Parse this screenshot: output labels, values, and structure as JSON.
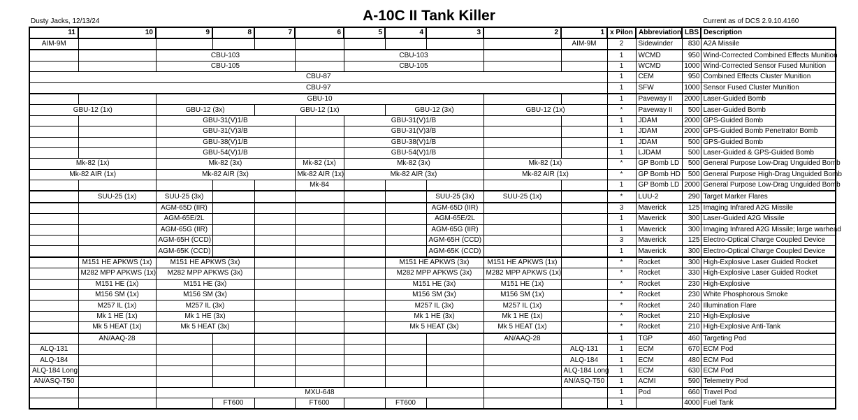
{
  "header": {
    "author": "Dusty Jacks, 12/13/24",
    "title": "A-10C II Tank Killer",
    "version": "Current as of DCS 2.9.10.4160"
  },
  "table": {
    "pylons": [
      11,
      10,
      9,
      8,
      7,
      6,
      5,
      4,
      3,
      2,
      1
    ],
    "columns": [
      "x Pilon",
      "Abbreviation",
      "LBS",
      "Description"
    ],
    "rows": [
      {
        "weapons": [
          "AIM-9M",
          "AIM-9M"
        ],
        "pilons": 2,
        "abbreviation": "Sidewinder",
        "lbs": 830,
        "description": "A2A Missile"
      },
      {
        "weapons": [
          "CBU-103",
          "CBU-103"
        ],
        "pilons": 1,
        "abbreviation": "WCMD",
        "lbs": 950,
        "description": "Wind-Corrected Combined Effects Munition"
      },
      {
        "weapons": [
          "CBU-105",
          "CBU-105"
        ],
        "pilons": 1,
        "abbreviation": "WCMD",
        "lbs": 1000,
        "description": "Wind-Corrected Sensor Fused Munition"
      },
      {
        "weapons": [
          "CBU-87"
        ],
        "pilons": 1,
        "abbreviation": "CEM",
        "lbs": 950,
        "description": "Combined Effects Cluster Munition"
      },
      {
        "weapons": [
          "CBU-97"
        ],
        "pilons": 1,
        "abbreviation": "SFW",
        "lbs": 1000,
        "description": "Sensor Fused Cluster Munition"
      },
      {
        "weapons": [
          "GBU-10"
        ],
        "pilons": 1,
        "abbreviation": "Paveway II",
        "lbs": 2000,
        "description": "Laser-Guided Bomb"
      },
      {
        "weapons": [
          "GBU-12 (1x)",
          "GBU-12 (3x)",
          "GBU-12 (1x)",
          "GBU-12 (3x)",
          "GBU-12 (1x)"
        ],
        "pilons": "*",
        "abbreviation": "Paveway II",
        "lbs": 500,
        "description": "Laser-Guided Bomb"
      },
      {
        "weapons": [
          "GBU-31(V)1/B",
          "GBU-31(V)1/B"
        ],
        "pilons": 1,
        "abbreviation": "JDAM",
        "lbs": 2000,
        "description": "GPS-Guided Bomb"
      },
      {
        "weapons": [
          "GBU-31(V)3/B",
          "GBU-31(V)3/B"
        ],
        "pilons": 1,
        "abbreviation": "JDAM",
        "lbs": 2000,
        "description": "GPS-Guided Bomb Penetrator Bomb"
      },
      {
        "weapons": [
          "GBU-38(V)1/B",
          "GBU-38(V)1/B"
        ],
        "pilons": 1,
        "abbreviation": "JDAM",
        "lbs": 500,
        "description": "GPS-Guided Bomb"
      },
      {
        "weapons": [
          "GBU-54(V)1/B",
          "GBU-54(V)1/B"
        ],
        "pilons": 1,
        "abbreviation": "LJDAM",
        "lbs": 500,
        "description": "Laser-Guided & GPS-Guided Bomb"
      },
      {
        "weapons": [
          "Mk-82 (1x)",
          "Mk-82 (3x)",
          "Mk-82 (1x)",
          "Mk-82 (3x)",
          "Mk-82 (1x)"
        ],
        "pilons": "*",
        "abbreviation": "GP Bomb LD",
        "lbs": 500,
        "description": "General Purpose Low-Drag Unguided Bomb"
      },
      {
        "weapons": [
          "Mk-82 AIR (1x)",
          "Mk-82 AIR (3x)",
          "Mk-82 AIR (1x)",
          "Mk-82 AIR (3x)",
          "Mk-82 AIR (1x)"
        ],
        "pilons": "*",
        "abbreviation": "GP Bomb HD",
        "lbs": 500,
        "description": "General Purpose High-Drag Unguided Bomb"
      },
      {
        "weapons": [
          "Mk-84"
        ],
        "pilons": 1,
        "abbreviation": "GP Bomb LD",
        "lbs": 2000,
        "description": "General Purpose Low-Drag Unguided Bomb"
      },
      {
        "weapons": [
          "SUU-25 (1x)",
          "SUU-25 (3x)",
          "SUU-25 (3x)",
          "SUU-25 (1x)"
        ],
        "pilons": "*",
        "abbreviation": "LUU-2",
        "lbs": 290,
        "description": "Target Marker Flares"
      },
      {
        "weapons": [
          "AGM-65D (IIR)",
          "AGM-65D (IIR)"
        ],
        "pilons": 3,
        "abbreviation": "Maverick",
        "lbs": 125,
        "description": "Imaging Infrared A2G Missile"
      },
      {
        "weapons": [
          "AGM-65E/2L",
          "AGM-65E/2L"
        ],
        "pilons": 1,
        "abbreviation": "Maverick",
        "lbs": 300,
        "description": "Laser-Guided A2G Missile"
      },
      {
        "weapons": [
          "AGM-65G (IIR)",
          "AGM-65G (IIR)"
        ],
        "pilons": 1,
        "abbreviation": "Maverick",
        "lbs": 300,
        "description": "Imaging Infrared A2G Missile; large warhead"
      },
      {
        "weapons": [
          "AGM-65H (CCD)",
          "AGM-65H (CCD)"
        ],
        "pilons": 3,
        "abbreviation": "Maverick",
        "lbs": 125,
        "description": "Electro-Optical Charge Coupled Device"
      },
      {
        "weapons": [
          "AGM-65K (CCD)",
          "AGM-65K (CCD)"
        ],
        "pilons": 1,
        "abbreviation": "Maverick",
        "lbs": 300,
        "description": "Electro-Optical Charge Coupled Device"
      },
      {
        "weapons": [
          "M151 HE APKWS (1x)",
          "M151 HE APKWS (3x)",
          "M151 HE APKWS (3x)",
          "M151 HE APKWS (1x)"
        ],
        "pilons": "*",
        "abbreviation": "Rocket",
        "lbs": 300,
        "description": "High-Explosive Laser Guided Rocket"
      },
      {
        "weapons": [
          "M282 MPP APKWS (1x)",
          "M282 MPP APKWS (3x)",
          "M282 MPP APKWS (3x)",
          "M282 MPP APKWS (1x)"
        ],
        "pilons": "*",
        "abbreviation": "Rocket",
        "lbs": 330,
        "description": "High-Explosive Laser Guided Rocket"
      },
      {
        "weapons": [
          "M151 HE (1x)",
          "M151 HE (3x)",
          "M151 HE (3x)",
          "M151 HE (1x)"
        ],
        "pilons": "*",
        "abbreviation": "Rocket",
        "lbs": 230,
        "description": "High-Explosive"
      },
      {
        "weapons": [
          "M156 SM (1x)",
          "M156 SM (3x)",
          "M156 SM (3x)",
          "M156 SM (1x)"
        ],
        "pilons": "*",
        "abbreviation": "Rocket",
        "lbs": 230,
        "description": "White Phosphorous Smoke"
      },
      {
        "weapons": [
          "M257 IL (1x)",
          "M257 IL (3x)",
          "M257 IL (3x)",
          "M257 IL (1x)"
        ],
        "pilons": "*",
        "abbreviation": "Rocket",
        "lbs": 240,
        "description": "Illumination Flare"
      },
      {
        "weapons": [
          "Mk 1 HE (1x)",
          "Mk 1 HE (3x)",
          "Mk 1 HE (3x)",
          "Mk 1 HE (1x)"
        ],
        "pilons": "*",
        "abbreviation": "Rocket",
        "lbs": 210,
        "description": "High-Explosive"
      },
      {
        "weapons": [
          "Mk 5 HEAT (1x)",
          "Mk 5 HEAT (3x)",
          "Mk 5 HEAT (3x)",
          "Mk 5 HEAT (1x)"
        ],
        "pilons": "*",
        "abbreviation": "Rocket",
        "lbs": 210,
        "description": "High-Explosive Anti-Tank"
      },
      {
        "weapons": [
          "AN/AAQ-28",
          "AN/AAQ-28"
        ],
        "pilons": 1,
        "abbreviation": "TGP",
        "lbs": 460,
        "description": "Targeting Pod"
      },
      {
        "weapons": [
          "ALQ-131",
          "ALQ-131"
        ],
        "pilons": 1,
        "abbreviation": "ECM",
        "lbs": 670,
        "description": "ECM Pod"
      },
      {
        "weapons": [
          "ALQ-184",
          "ALQ-184"
        ],
        "pilons": 1,
        "abbreviation": "ECM",
        "lbs": 480,
        "description": "ECM Pod"
      },
      {
        "weapons": [
          "ALQ-184 Long",
          "ALQ-184 Long"
        ],
        "pilons": 1,
        "abbreviation": "ECM",
        "lbs": 630,
        "description": "ECM Pod"
      },
      {
        "weapons": [
          "AN/ASQ-T50",
          "AN/ASQ-T50"
        ],
        "pilons": 1,
        "abbreviation": "ACMI",
        "lbs": 590,
        "description": "Telemetry Pod"
      },
      {
        "weapons": [
          "MXU-648"
        ],
        "pilons": 1,
        "abbreviation": "Pod",
        "lbs": 660,
        "description": "Travel Pod"
      },
      {
        "weapons": [
          "FT600",
          "FT600",
          "FT600"
        ],
        "pilons": 1,
        "abbreviation": null,
        "lbs": 4000,
        "description": "Fuel Tank"
      }
    ]
  }
}
